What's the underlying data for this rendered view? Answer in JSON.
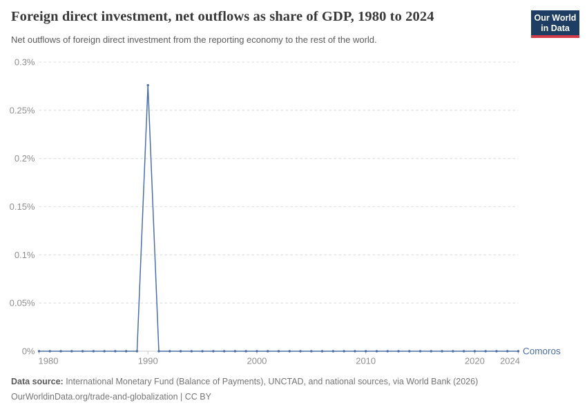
{
  "header": {
    "title": "Foreign direct investment, net outflows as share of GDP, 1980 to 2024",
    "subtitle": "Net outflows of foreign direct investment from the reporting economy to the rest of the world.",
    "logo": {
      "line1": "Our World",
      "line2": "in Data"
    }
  },
  "chart_data": {
    "type": "line",
    "title": "Foreign direct investment, net outflows as share of GDP, 1980 to 2024",
    "xlabel": "",
    "ylabel": "",
    "unit": "%",
    "x": [
      1980,
      1981,
      1982,
      1983,
      1984,
      1985,
      1986,
      1987,
      1988,
      1989,
      1990,
      1991,
      1992,
      1993,
      1994,
      1995,
      1996,
      1997,
      1998,
      1999,
      2000,
      2001,
      2002,
      2003,
      2004,
      2005,
      2006,
      2007,
      2008,
      2009,
      2010,
      2011,
      2012,
      2013,
      2014,
      2015,
      2016,
      2017,
      2018,
      2019,
      2020,
      2021,
      2022,
      2023,
      2024
    ],
    "series": [
      {
        "name": "Comoros",
        "values": [
          0,
          0,
          0,
          0,
          0,
          0,
          0,
          0,
          0,
          0,
          0.276,
          0,
          0,
          0,
          0,
          0,
          0,
          0,
          0,
          0,
          0,
          0,
          0,
          0,
          0,
          0,
          0,
          0,
          0,
          0,
          0,
          0,
          0,
          0,
          0,
          0,
          0,
          0,
          0,
          0,
          0,
          0,
          0,
          0,
          0
        ]
      }
    ],
    "ylim": [
      0,
      0.3
    ],
    "yticks": [
      0,
      0.05,
      0.1,
      0.15,
      0.2,
      0.25,
      0.3
    ],
    "ytick_labels": [
      "0%",
      "0.05%",
      "0.1%",
      "0.15%",
      "0.2%",
      "0.25%",
      "0.3%"
    ],
    "xticks": [
      1980,
      1990,
      2000,
      2010,
      2020,
      2024
    ],
    "grid": "horizontal-dashed",
    "markers": true,
    "legend_position": "end-of-line"
  },
  "colors": {
    "line": "#4c6ea8",
    "grid": "#e3e3e3",
    "axis": "#c8c8c8",
    "tick_text": "#8f8f8f",
    "logo_bg": "#1d3d63",
    "logo_underline": "#d23b47"
  },
  "footer": {
    "datasource_label": "Data source:",
    "datasource_text": " International Monetary Fund (Balance of Payments), UNCTAD, and national sources, via World Bank (2026)",
    "link_text": "OurWorldinData.org/trade-and-globalization | CC BY"
  }
}
